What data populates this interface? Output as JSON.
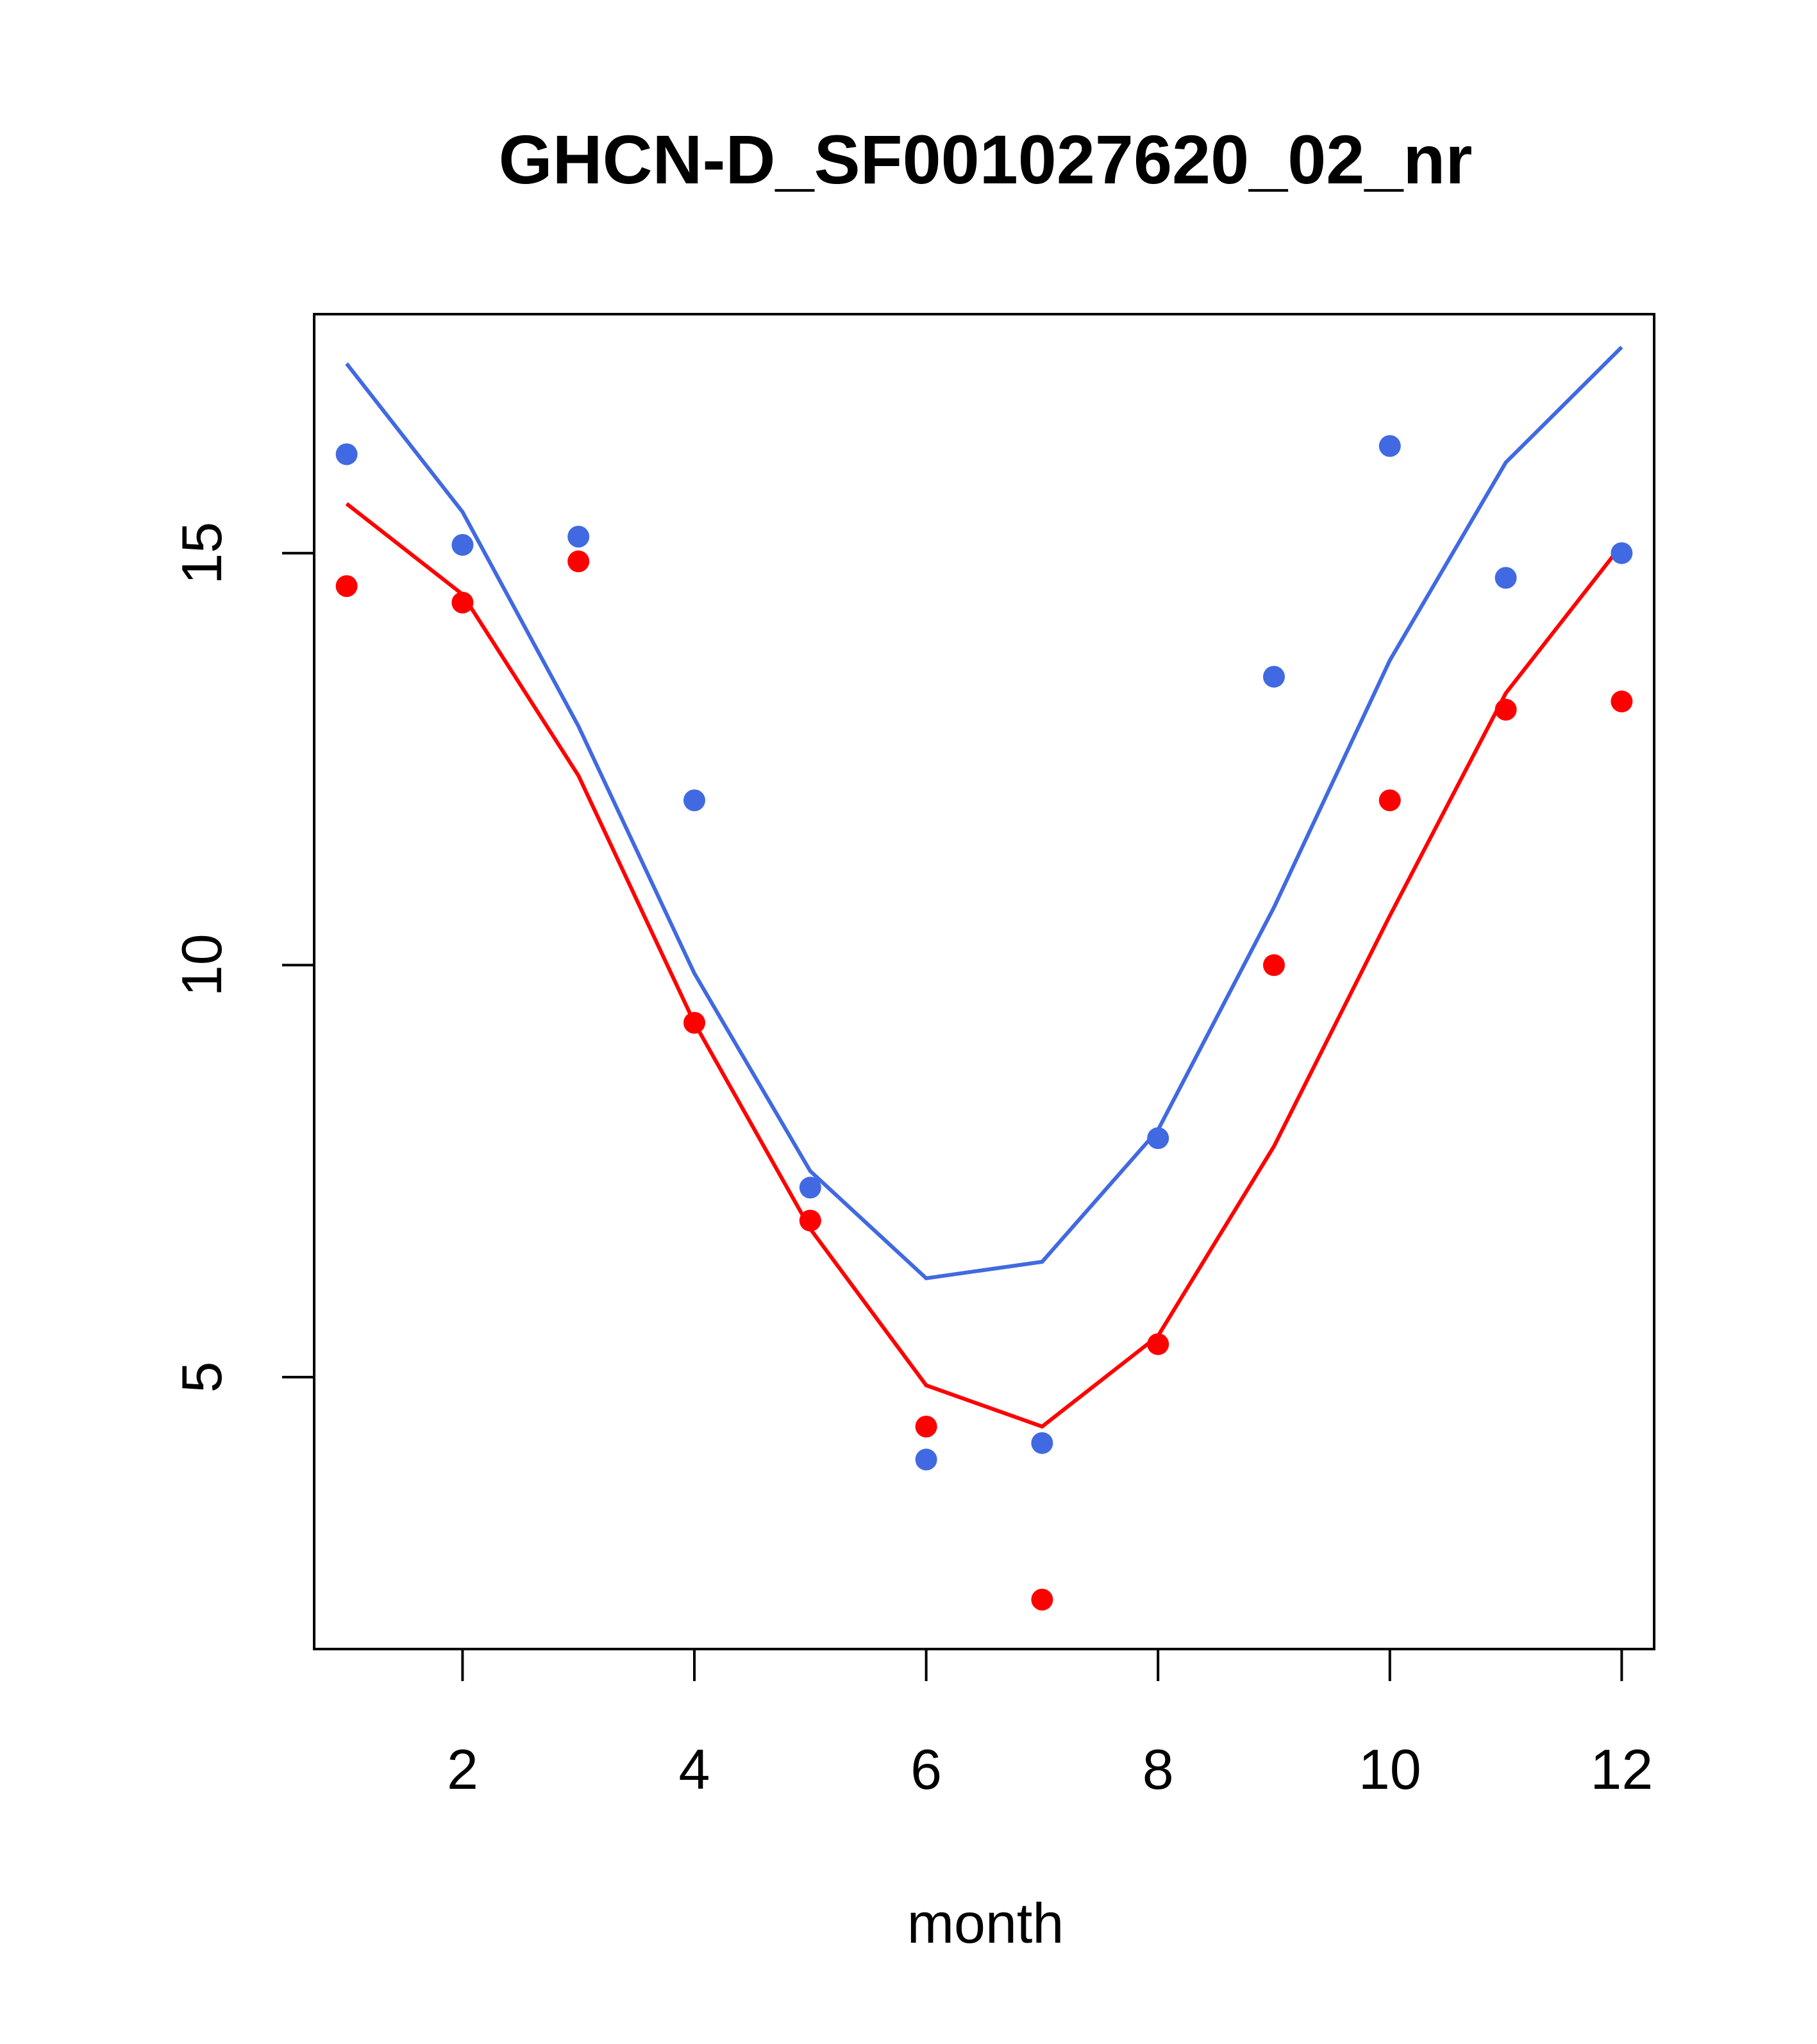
{
  "chart_data": {
    "type": "line",
    "title": "GHCN-D_SF001027620_02_nr",
    "xlabel": "month",
    "ylabel": "",
    "xlim": [
      0.72,
      12.28
    ],
    "ylim": [
      1.7,
      17.9
    ],
    "xticks": [
      2,
      4,
      6,
      8,
      10,
      12
    ],
    "yticks": [
      5,
      10,
      15
    ],
    "xtick_labels": [
      "2",
      "4",
      "6",
      "8",
      "10",
      "12"
    ],
    "ytick_labels": [
      "5",
      "10",
      "15"
    ],
    "grid": false,
    "x": [
      1,
      2,
      3,
      4,
      5,
      6,
      7,
      8,
      9,
      10,
      11,
      12
    ],
    "series": [
      {
        "color": "#4169E1",
        "line": [
          17.3,
          15.5,
          12.9,
          9.9,
          7.5,
          6.2,
          6.4,
          8.0,
          10.7,
          13.7,
          16.1,
          17.5
        ],
        "points": [
          16.2,
          15.1,
          15.2,
          12.0,
          7.3,
          4.0,
          4.2,
          7.9,
          13.5,
          16.3,
          14.7,
          15.0
        ]
      },
      {
        "color": "#FF0000",
        "line": [
          15.6,
          14.5,
          12.3,
          9.3,
          6.8,
          4.9,
          4.4,
          5.5,
          7.8,
          10.6,
          13.3,
          15.1
        ],
        "points": [
          14.6,
          14.4,
          14.9,
          9.3,
          6.9,
          4.4,
          2.3,
          5.4,
          10.0,
          12.0,
          13.1,
          13.2
        ]
      }
    ]
  }
}
